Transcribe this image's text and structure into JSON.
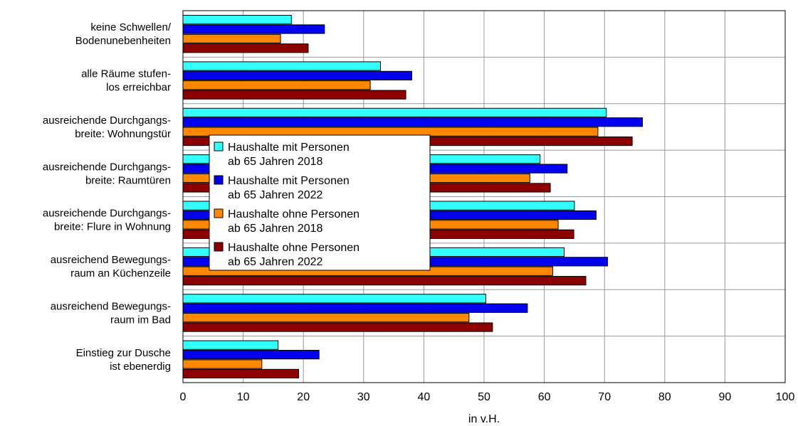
{
  "chart_data": {
    "type": "bar",
    "orientation": "horizontal",
    "title": "",
    "xlabel": "in v.H.",
    "ylabel": "",
    "xlim": [
      0,
      100
    ],
    "xticks": [
      0,
      10,
      20,
      30,
      40,
      50,
      60,
      70,
      80,
      90,
      100
    ],
    "grid": true,
    "legend_position": "center-left, inside plot",
    "categories": [
      [
        "keine Schwellen/",
        "Bodenunebenheiten"
      ],
      [
        "alle Räume stufen-",
        "los erreichbar"
      ],
      [
        "ausreichende Durchgangs-",
        "breite: Wohnungstür"
      ],
      [
        "ausreichende Durchgangs-",
        "breite: Raumtüren"
      ],
      [
        "ausreichende Durchgangs-",
        "breite: Flure in Wohnung"
      ],
      [
        "ausreichend Bewegungs-",
        "raum an Küchenzeile"
      ],
      [
        "ausreichend Bewegungs-",
        "raum im Bad"
      ],
      [
        "Einstieg zur Dusche",
        "ist ebenerdig"
      ]
    ],
    "series": [
      {
        "name": [
          "Haushalte mit Personen",
          "ab 65 Jahren 2018"
        ],
        "color": "#33ffff",
        "values": [
          18,
          32.8,
          70.3,
          59.3,
          65,
          63.3,
          50.3,
          15.8
        ]
      },
      {
        "name": [
          "Haushalte mit Personen",
          "ab 65 Jahren 2022"
        ],
        "color": "#0000ee",
        "values": [
          23.5,
          38,
          76.3,
          63.8,
          68.6,
          70.5,
          57.2,
          22.6
        ]
      },
      {
        "name": [
          "Haushalte ohne Personen",
          "ab 65 Jahren 2018"
        ],
        "color": "#ff8800",
        "values": [
          16.2,
          31.1,
          68.9,
          57.6,
          62.3,
          61.4,
          47.5,
          13.1
        ]
      },
      {
        "name": [
          "Haushalte ohne Personen",
          "ab 65 Jahren 2022"
        ],
        "color": "#8b0000",
        "values": [
          20.8,
          37,
          74.6,
          61,
          64.9,
          66.9,
          51.4,
          19.2
        ]
      }
    ]
  }
}
